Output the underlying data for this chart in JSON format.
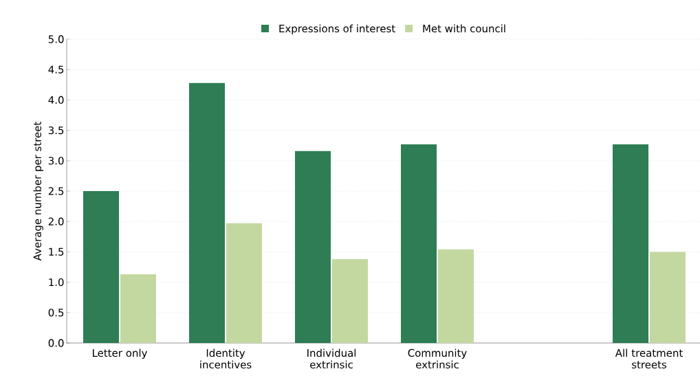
{
  "chart_data": {
    "type": "bar",
    "ylabel": "Average number per street",
    "categories": [
      "Letter only",
      "Identity incentives",
      "Individual extrinsic",
      "Community extrinsic",
      null,
      "All treatment streets"
    ],
    "series": [
      {
        "name": "Expressions of interest",
        "color": "#2e7d54",
        "values": [
          2.5,
          4.28,
          3.16,
          3.27,
          null,
          3.27
        ]
      },
      {
        "name": "Met with council",
        "color": "#c3d8a0",
        "values": [
          1.13,
          1.97,
          1.38,
          1.54,
          null,
          1.5
        ]
      }
    ],
    "ylim": [
      0,
      5
    ],
    "yticks": [
      {
        "value": 0,
        "label": "0.0"
      },
      {
        "value": 0.5,
        "label": "0.5"
      },
      {
        "value": 1,
        "label": "1.0"
      },
      {
        "value": 1.5,
        "label": "1.5"
      },
      {
        "value": 2,
        "label": "2.0"
      },
      {
        "value": 2.5,
        "label": "2.5"
      },
      {
        "value": 3,
        "label": "3.0"
      },
      {
        "value": 3.5,
        "label": "3.5"
      },
      {
        "value": 4,
        "label": "4.0"
      },
      {
        "value": 4.5,
        "label": "4.5"
      },
      {
        "value": 5,
        "label": "5.0"
      }
    ],
    "grid": "y",
    "legend": "top"
  }
}
